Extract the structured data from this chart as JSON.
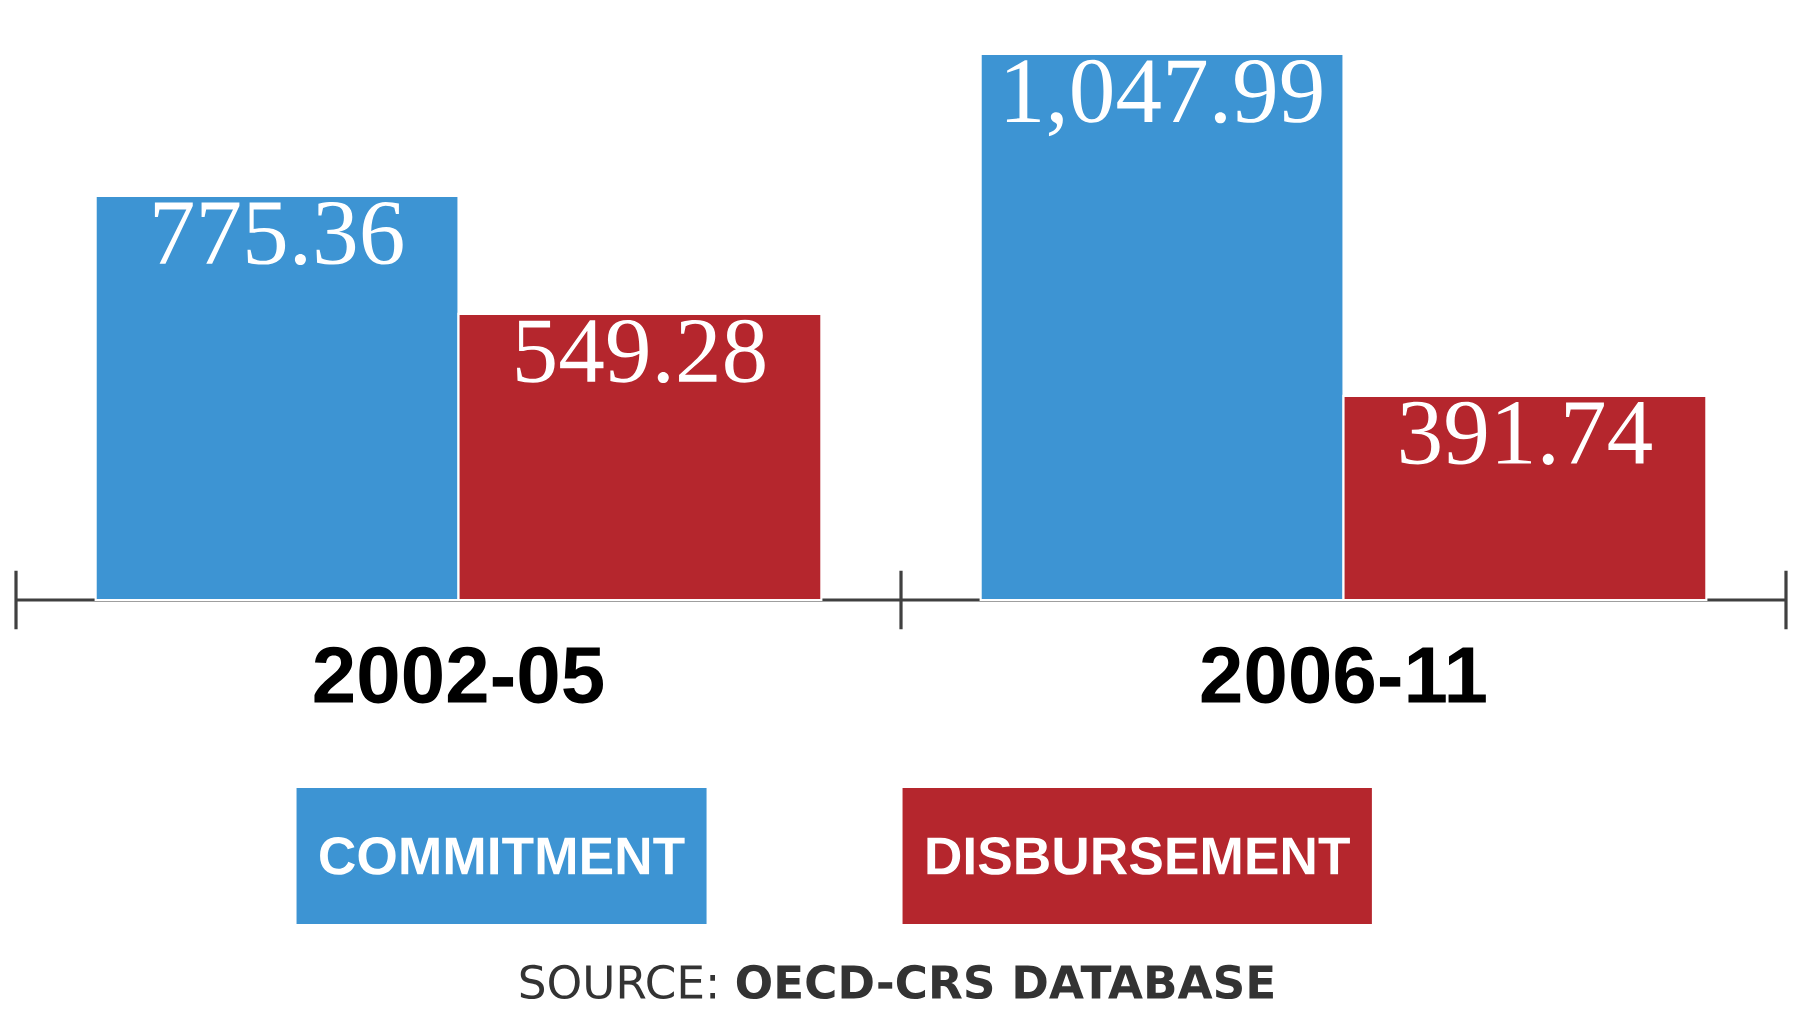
{
  "chart_data": {
    "type": "bar",
    "categories": [
      "2002-05",
      "2006-11"
    ],
    "series": [
      {
        "name": "COMMITMENT",
        "color": "#3d94d3",
        "values": [
          775.36,
          1047.99
        ],
        "value_labels": [
          "775.36",
          "1,047.99"
        ]
      },
      {
        "name": "DISBURSEMENT",
        "color": "#b5262d",
        "values": [
          549.28,
          391.74
        ],
        "value_labels": [
          "549.28",
          "391.74"
        ]
      }
    ],
    "tick_labels": "x",
    "grid": false,
    "legend": "bottom",
    "annotations": [
      "SOURCE: **OECD-CRS DATABASE**"
    ]
  }
}
